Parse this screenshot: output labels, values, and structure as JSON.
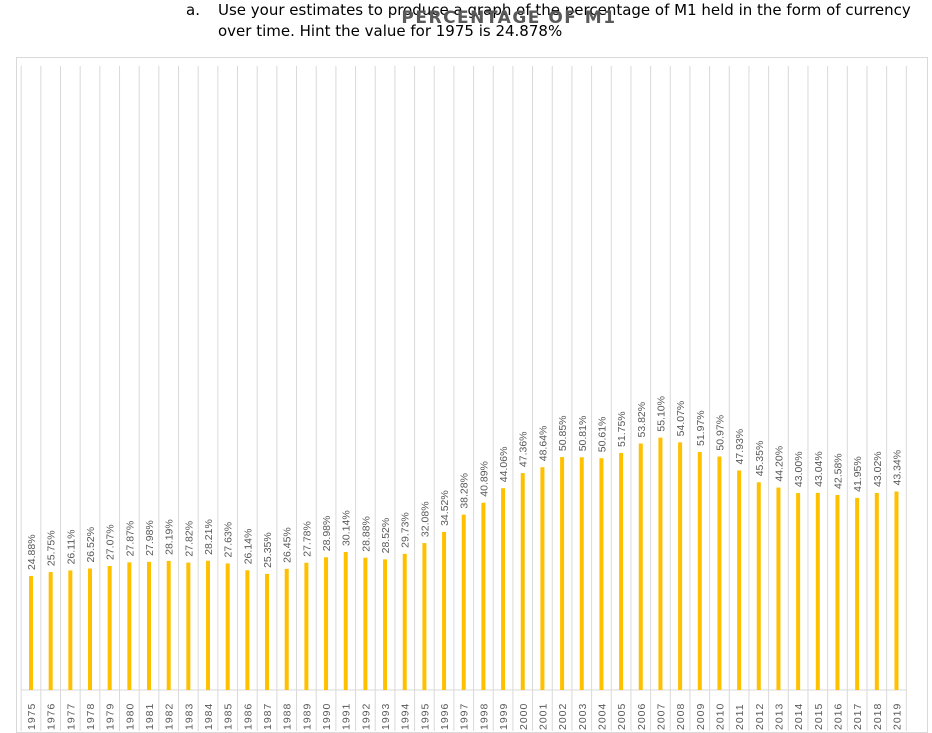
{
  "question": {
    "letter": "a.",
    "text": "Use your estimates to produce a graph of the percentage of M1 held in the form of currency over time.  Hint the value for 1975 is 24.878%"
  },
  "colors": {
    "bar": "#FFC000",
    "gridline": "#d9d9d9",
    "label": "#595959"
  },
  "chart_data": {
    "type": "bar",
    "title": "PERCENTAGE OF M1",
    "xlabel": "",
    "ylabel": "",
    "ylim": [
      0,
      60
    ],
    "grid": "vertical",
    "categories": [
      "1975",
      "1976",
      "1977",
      "1978",
      "1979",
      "1980",
      "1981",
      "1982",
      "1983",
      "1984",
      "1985",
      "1986",
      "1987",
      "1988",
      "1989",
      "1990",
      "1991",
      "1992",
      "1993",
      "1994",
      "1995",
      "1996",
      "1997",
      "1998",
      "1999",
      "2000",
      "2001",
      "2002",
      "2003",
      "2004",
      "2005",
      "2006",
      "2007",
      "2008",
      "2009",
      "2010",
      "2011",
      "2012",
      "2013",
      "2014",
      "2015",
      "2016",
      "2017",
      "2018",
      "2019"
    ],
    "values": [
      24.88,
      25.75,
      26.11,
      26.52,
      27.07,
      27.87,
      27.98,
      28.19,
      27.82,
      28.21,
      27.63,
      26.14,
      25.35,
      26.45,
      27.78,
      28.98,
      30.14,
      28.88,
      28.52,
      29.73,
      32.08,
      34.52,
      38.28,
      40.89,
      44.06,
      47.36,
      48.64,
      50.85,
      50.81,
      50.61,
      51.75,
      53.82,
      55.1,
      54.07,
      51.97,
      50.97,
      47.93,
      45.35,
      44.2,
      43.0,
      43.04,
      42.58,
      41.95,
      43.02,
      43.34
    ],
    "data_labels": [
      "24.88%",
      "25.75%",
      "26.11%",
      "26.52%",
      "27.07%",
      "27.87%",
      "27.98%",
      "28.19%",
      "27.82%",
      "28.21%",
      "27.63%",
      "26.14%",
      "25.35%",
      "26.45%",
      "27.78%",
      "28.98%",
      "30.14%",
      "28.88%",
      "28.52%",
      "29.73%",
      "32.08%",
      "34.52%",
      "38.28%",
      "40.89%",
      "44.06%",
      "47.36%",
      "48.64%",
      "50.85%",
      "50.81%",
      "50.61%",
      "51.75%",
      "53.82%",
      "55.10%",
      "54.07%",
      "51.97%",
      "50.97%",
      "47.93%",
      "45.35%",
      "44.20%",
      "43.00%",
      "43.04%",
      "42.58%",
      "41.95%",
      "43.02%",
      "43.34%"
    ]
  }
}
